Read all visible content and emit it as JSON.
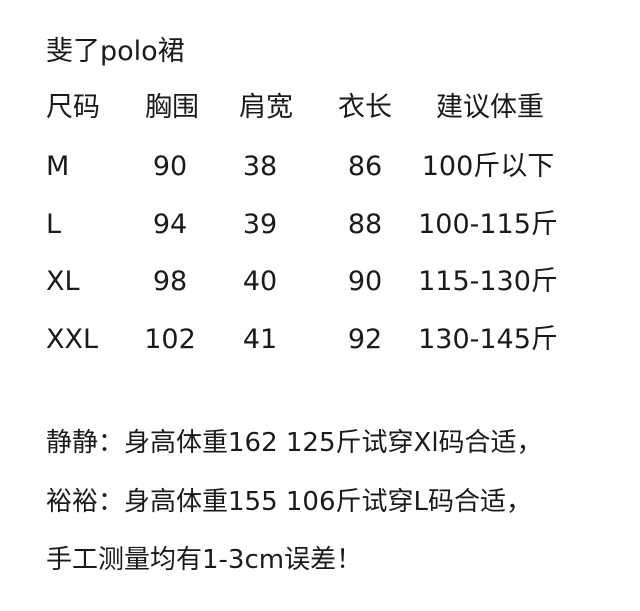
{
  "title": "斐了polo裙",
  "headers": [
    "尺码",
    "胸围",
    "肩宽",
    "衣长",
    "建议体重"
  ],
  "rows": [
    [
      "M",
      "90",
      "38",
      "86",
      "100斤以下"
    ],
    [
      "L",
      "94",
      "39",
      "88",
      "100-115斤"
    ],
    [
      "XL",
      "98",
      "40",
      "90",
      "115-130斤"
    ],
    [
      "XXL",
      "102",
      "41",
      "92",
      "130-145斤"
    ]
  ],
  "notes": [
    "静静：身高体重162 125斤试穿Xl码合适，",
    "裕裕：身高体重155 106斤试穿L码合适，",
    "手工测量均有1-3cm误差！"
  ]
}
